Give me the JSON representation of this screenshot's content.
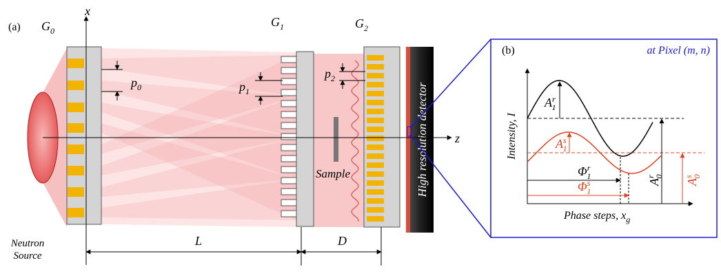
{
  "panel_a": {
    "label": "(a)",
    "x_axis": "x",
    "z_axis": "z",
    "gratings": [
      {
        "symbol": "G",
        "subscript": "0"
      },
      {
        "symbol": "G",
        "subscript": "1"
      },
      {
        "symbol": "G",
        "subscript": "2"
      }
    ],
    "periods": [
      {
        "symbol": "p",
        "subscript": "0"
      },
      {
        "symbol": "p",
        "subscript": "1"
      },
      {
        "symbol": "p",
        "subscript": "2"
      }
    ],
    "source": [
      "Neutron",
      "Source"
    ],
    "sample": "Sample",
    "distances": [
      "L",
      "D"
    ],
    "detector": "High resolution detector"
  },
  "panel_b": {
    "label": "(b)",
    "pixel": "at Pixel (m, n)",
    "y_axis": "Intensity, I",
    "x_axis": {
      "text": "Phase steps, ",
      "symbol": "x",
      "subscript": "g"
    },
    "A1r": {
      "symbol": "A",
      "subscript": "1",
      "superscript": "r"
    },
    "A1s": {
      "symbol": "A",
      "subscript": "1",
      "superscript": "s"
    },
    "A0r": {
      "symbol": "A",
      "subscript": "0",
      "superscript": "r"
    },
    "A0s": {
      "symbol": "A",
      "subscript": "0",
      "superscript": "s"
    },
    "Phi1r": {
      "symbol": "Φ",
      "subscript": "1",
      "superscript": "r"
    },
    "Phi1s": {
      "symbol": "Φ",
      "subscript": "1",
      "superscript": "s"
    }
  }
}
